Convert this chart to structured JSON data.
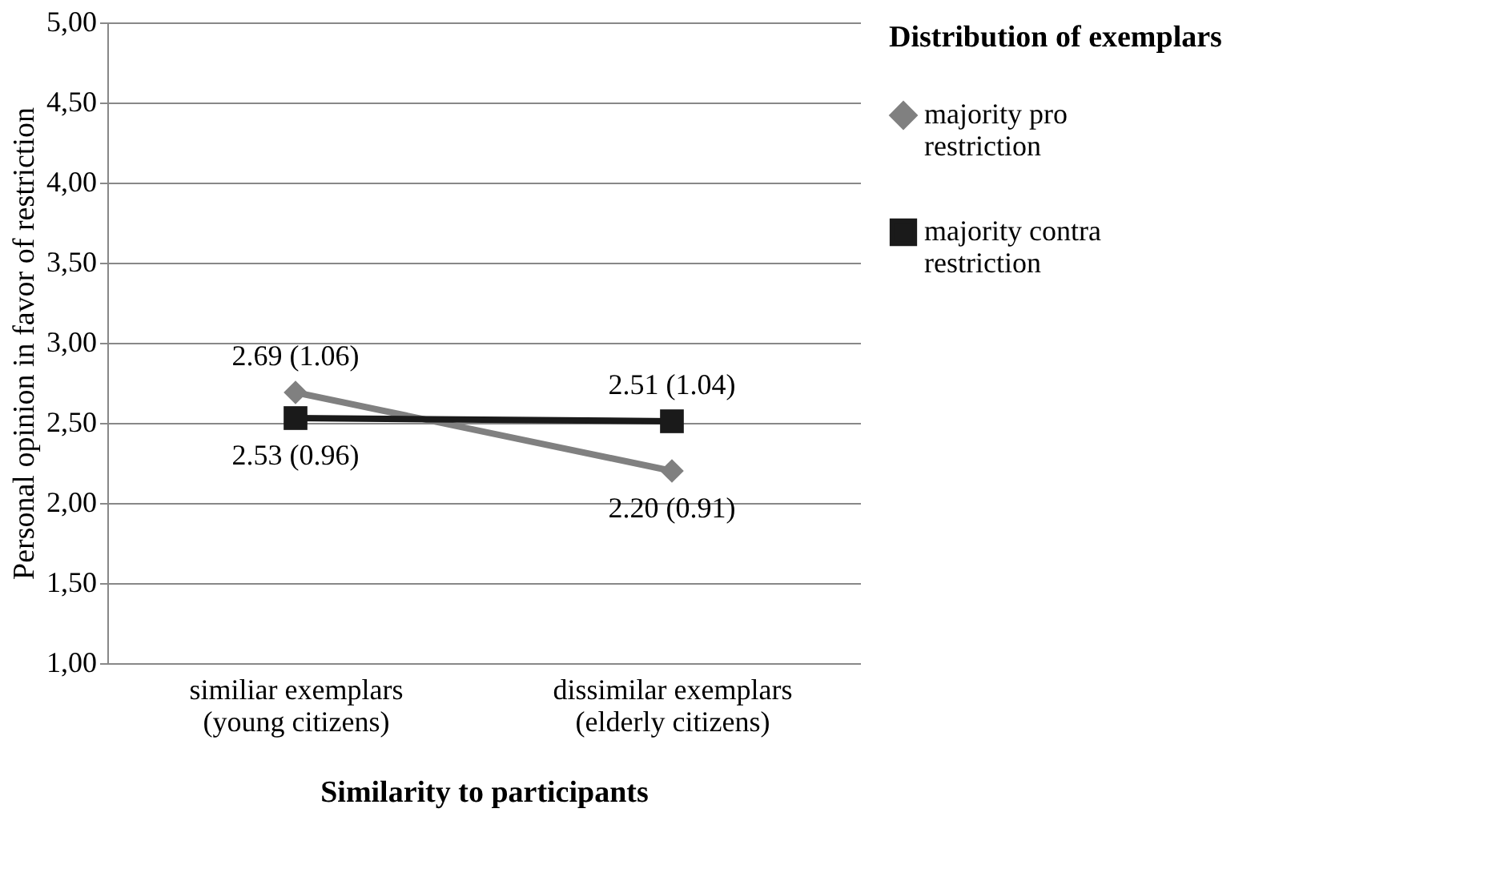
{
  "chart_data": {
    "type": "line",
    "xlabel": "Similarity to participants",
    "ylabel": "Personal opinion in favor of restriction",
    "legend_title": "Distribution of exemplars",
    "categories": [
      "similiar exemplars\n(young citizens)",
      "dissimilar exemplars\n(elderly citizens)"
    ],
    "series": [
      {
        "name": "majority pro restriction",
        "color": "#808080",
        "marker": "diamond",
        "values": [
          2.69,
          2.2
        ],
        "value_labels": [
          "2.69 (1.06)",
          "2.20 (0.91)"
        ]
      },
      {
        "name": "majority contra restriction",
        "color": "#1a1a1a",
        "marker": "square",
        "values": [
          2.53,
          2.51
        ],
        "value_labels": [
          "2.53 (0.96)",
          "2.51 (1.04)"
        ]
      }
    ],
    "ylim": [
      1,
      5
    ],
    "yticks": [
      {
        "value": 1,
        "label": "1,00"
      },
      {
        "value": 1.5,
        "label": "1,50"
      },
      {
        "value": 2,
        "label": "2,00"
      },
      {
        "value": 2.5,
        "label": "2,50"
      },
      {
        "value": 3,
        "label": "3,00"
      },
      {
        "value": 3.5,
        "label": "3,50"
      },
      {
        "value": 4,
        "label": "4,00"
      },
      {
        "value": 4.5,
        "label": "4,50"
      },
      {
        "value": 5,
        "label": "5,00"
      }
    ],
    "grid": "y",
    "legend": "right"
  }
}
